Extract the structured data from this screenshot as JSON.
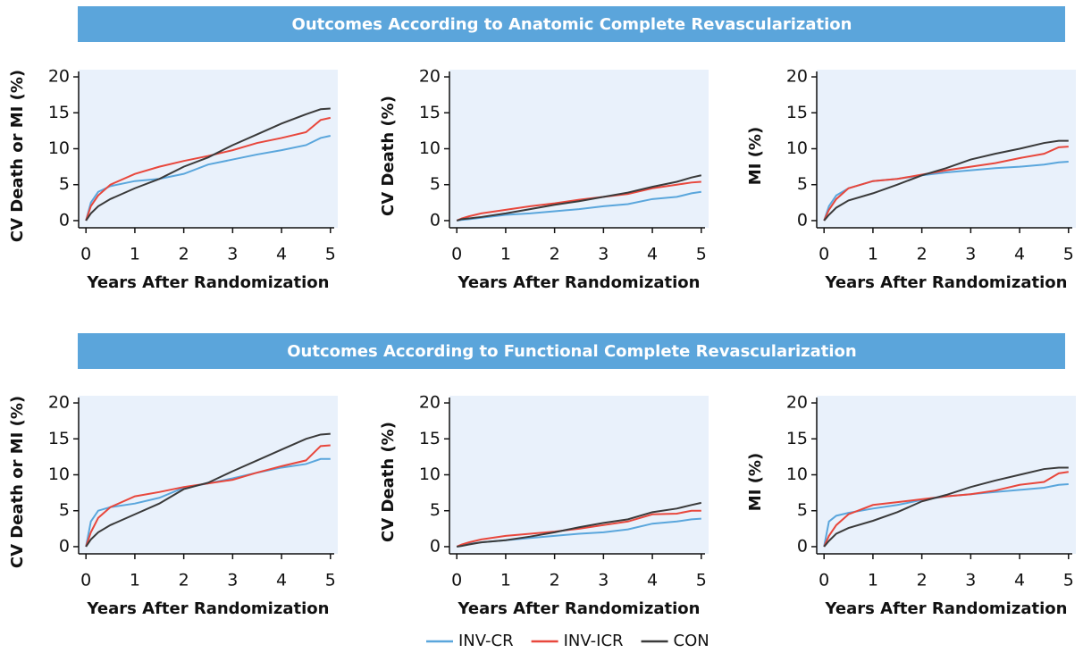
{
  "sections": [
    "Outcomes According to Anatomic Complete Revascularization",
    "Outcomes According to Functional Complete Revascularization"
  ],
  "chart_data": [
    {
      "type": "line",
      "ylabel": "CV Death or MI (%)",
      "xlabel": "Years After Randomization",
      "x": [
        0,
        0.1,
        0.25,
        0.5,
        1,
        1.5,
        2,
        2.5,
        3,
        3.5,
        4,
        4.5,
        4.8,
        5
      ],
      "xlim": [
        -0.15,
        5.15
      ],
      "xticks": [
        0,
        1,
        2,
        3,
        4,
        5
      ],
      "ylim": [
        -1,
        21
      ],
      "yticks": [
        0,
        5,
        10,
        15,
        20
      ],
      "series": [
        {
          "name": "INV-CR",
          "color": "#5aa6dc",
          "values": [
            0,
            2.5,
            4,
            4.8,
            5.5,
            5.8,
            6.5,
            7.8,
            8.5,
            9.2,
            9.8,
            10.5,
            11.5,
            11.8
          ]
        },
        {
          "name": "INV-ICR",
          "color": "#e8473c",
          "values": [
            0,
            2,
            3.5,
            5,
            6.5,
            7.5,
            8.3,
            9,
            9.8,
            10.8,
            11.5,
            12.3,
            14,
            14.3
          ]
        },
        {
          "name": "CON",
          "color": "#3a3a3a",
          "values": [
            0,
            1,
            2,
            3,
            4.5,
            5.8,
            7.5,
            8.8,
            10.5,
            12,
            13.5,
            14.8,
            15.5,
            15.6
          ]
        }
      ]
    },
    {
      "type": "line",
      "ylabel": "CV Death (%)",
      "xlabel": "Years After Randomization",
      "x": [
        0,
        0.1,
        0.25,
        0.5,
        1,
        1.5,
        2,
        2.5,
        3,
        3.5,
        4,
        4.5,
        4.8,
        5
      ],
      "xlim": [
        -0.15,
        5.15
      ],
      "xticks": [
        0,
        1,
        2,
        3,
        4,
        5
      ],
      "ylim": [
        -1,
        21
      ],
      "yticks": [
        0,
        5,
        10,
        15,
        20
      ],
      "series": [
        {
          "name": "INV-CR",
          "color": "#5aa6dc",
          "values": [
            0,
            0.1,
            0.2,
            0.4,
            0.8,
            1,
            1.3,
            1.6,
            2,
            2.3,
            3,
            3.3,
            3.8,
            4
          ]
        },
        {
          "name": "INV-ICR",
          "color": "#e8473c",
          "values": [
            0,
            0.3,
            0.6,
            1,
            1.5,
            2,
            2.4,
            2.9,
            3.3,
            3.7,
            4.5,
            5,
            5.3,
            5.4
          ]
        },
        {
          "name": "CON",
          "color": "#3a3a3a",
          "values": [
            0,
            0.2,
            0.3,
            0.5,
            1,
            1.6,
            2.2,
            2.7,
            3.3,
            3.9,
            4.7,
            5.4,
            6,
            6.3
          ]
        }
      ]
    },
    {
      "type": "line",
      "ylabel": "MI (%)",
      "xlabel": "Years After Randomization",
      "x": [
        0,
        0.1,
        0.25,
        0.5,
        1,
        1.5,
        2,
        2.5,
        3,
        3.5,
        4,
        4.5,
        4.8,
        5
      ],
      "xlim": [
        -0.15,
        5.15
      ],
      "xticks": [
        0,
        1,
        2,
        3,
        4,
        5
      ],
      "ylim": [
        -1,
        21
      ],
      "yticks": [
        0,
        5,
        10,
        15,
        20
      ],
      "series": [
        {
          "name": "INV-CR",
          "color": "#5aa6dc",
          "values": [
            0,
            2,
            3.5,
            4.5,
            5.5,
            5.8,
            6.3,
            6.7,
            7,
            7.3,
            7.5,
            7.8,
            8.1,
            8.2
          ]
        },
        {
          "name": "INV-ICR",
          "color": "#e8473c",
          "values": [
            0,
            1.5,
            3,
            4.5,
            5.5,
            5.8,
            6.4,
            7,
            7.5,
            8,
            8.7,
            9.3,
            10.2,
            10.3
          ]
        },
        {
          "name": "CON",
          "color": "#3a3a3a",
          "values": [
            0,
            0.8,
            1.8,
            2.8,
            3.8,
            5,
            6.3,
            7.3,
            8.5,
            9.3,
            10,
            10.8,
            11.1,
            11.1
          ]
        }
      ]
    },
    {
      "type": "line",
      "ylabel": "CV Death or MI (%)",
      "xlabel": "Years After Randomization",
      "x": [
        0,
        0.1,
        0.25,
        0.5,
        1,
        1.5,
        2,
        2.5,
        3,
        3.5,
        4,
        4.5,
        4.8,
        5
      ],
      "xlim": [
        -0.15,
        5.15
      ],
      "xticks": [
        0,
        1,
        2,
        3,
        4,
        5
      ],
      "ylim": [
        -1,
        21
      ],
      "yticks": [
        0,
        5,
        10,
        15,
        20
      ],
      "series": [
        {
          "name": "INV-CR",
          "color": "#5aa6dc",
          "values": [
            0,
            3.5,
            5,
            5.5,
            6,
            6.8,
            8.2,
            8.8,
            9.5,
            10.3,
            11,
            11.5,
            12.2,
            12.2
          ]
        },
        {
          "name": "INV-ICR",
          "color": "#e8473c",
          "values": [
            0,
            2,
            4,
            5.5,
            7,
            7.6,
            8.3,
            8.8,
            9.3,
            10.3,
            11.2,
            12,
            14,
            14.1
          ]
        },
        {
          "name": "CON",
          "color": "#3a3a3a",
          "values": [
            0,
            1,
            2,
            3,
            4.5,
            6,
            8,
            8.9,
            10.5,
            12,
            13.5,
            15,
            15.6,
            15.7
          ]
        }
      ]
    },
    {
      "type": "line",
      "ylabel": "CV Death (%)",
      "xlabel": "Years After Randomization",
      "x": [
        0,
        0.1,
        0.25,
        0.5,
        1,
        1.5,
        2,
        2.5,
        3,
        3.5,
        4,
        4.5,
        4.8,
        5
      ],
      "xlim": [
        -0.15,
        5.15
      ],
      "xticks": [
        0,
        1,
        2,
        3,
        4,
        5
      ],
      "ylim": [
        -1,
        21
      ],
      "yticks": [
        0,
        5,
        10,
        15,
        20
      ],
      "series": [
        {
          "name": "INV-CR",
          "color": "#5aa6dc",
          "values": [
            0,
            0.2,
            0.4,
            0.6,
            0.9,
            1.2,
            1.5,
            1.8,
            2,
            2.4,
            3.2,
            3.5,
            3.8,
            3.9
          ]
        },
        {
          "name": "INV-ICR",
          "color": "#e8473c",
          "values": [
            0,
            0.3,
            0.6,
            1,
            1.5,
            1.8,
            2.1,
            2.5,
            3,
            3.5,
            4.5,
            4.6,
            5,
            5
          ]
        },
        {
          "name": "CON",
          "color": "#3a3a3a",
          "values": [
            0,
            0.1,
            0.3,
            0.6,
            0.9,
            1.4,
            2,
            2.7,
            3.3,
            3.8,
            4.8,
            5.3,
            5.8,
            6.1
          ]
        }
      ]
    },
    {
      "type": "line",
      "ylabel": "MI (%)",
      "xlabel": "Years After Randomization",
      "x": [
        0,
        0.1,
        0.25,
        0.5,
        1,
        1.5,
        2,
        2.5,
        3,
        3.5,
        4,
        4.5,
        4.8,
        5
      ],
      "xlim": [
        -0.15,
        5.15
      ],
      "xticks": [
        0,
        1,
        2,
        3,
        4,
        5
      ],
      "ylim": [
        -1,
        21
      ],
      "yticks": [
        0,
        5,
        10,
        15,
        20
      ],
      "series": [
        {
          "name": "INV-CR",
          "color": "#5aa6dc",
          "values": [
            0,
            3.5,
            4.3,
            4.7,
            5.3,
            5.8,
            6.5,
            7,
            7.3,
            7.6,
            7.9,
            8.2,
            8.6,
            8.7
          ]
        },
        {
          "name": "INV-ICR",
          "color": "#e8473c",
          "values": [
            0,
            1.5,
            3,
            4.5,
            5.8,
            6.2,
            6.6,
            7,
            7.3,
            7.8,
            8.6,
            9,
            10.2,
            10.4
          ]
        },
        {
          "name": "CON",
          "color": "#3a3a3a",
          "values": [
            0,
            0.8,
            1.8,
            2.6,
            3.6,
            4.8,
            6.3,
            7.2,
            8.3,
            9.2,
            10,
            10.8,
            11,
            11
          ]
        }
      ]
    }
  ]
}
